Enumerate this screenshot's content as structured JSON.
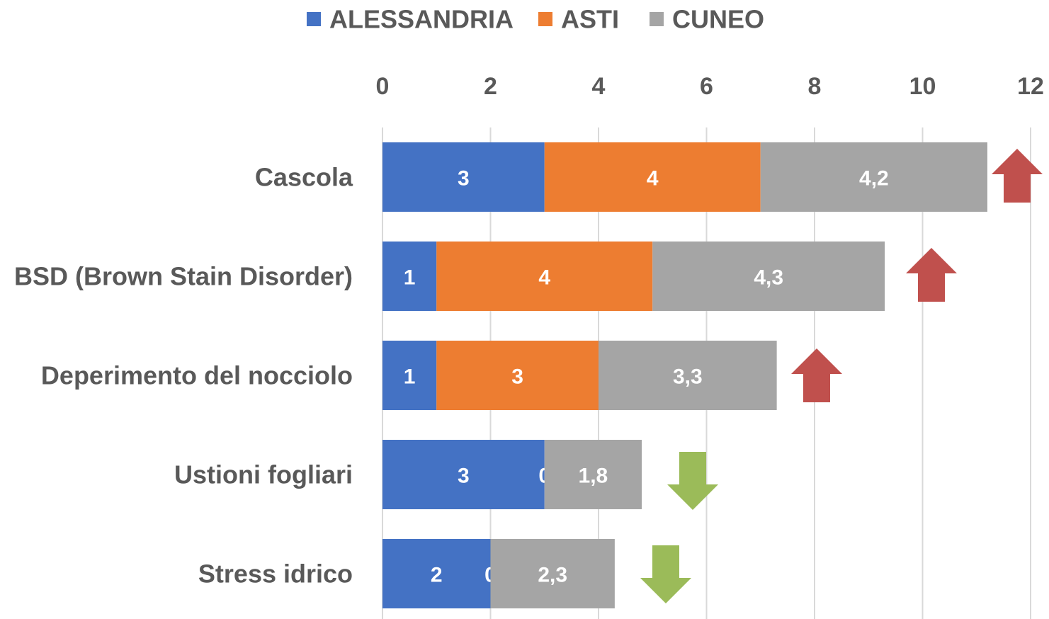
{
  "chart_data": {
    "type": "stacked_barh",
    "categories": [
      "Cascola",
      "BSD (Brown Stain Disorder)",
      "Deperimento del nocciolo",
      "Ustioni fogliari",
      "Stress idrico"
    ],
    "series": [
      {
        "name": "ALESSANDRIA",
        "color": "#4472c4",
        "values": [
          3,
          1,
          1,
          3,
          2
        ]
      },
      {
        "name": "ASTI",
        "color": "#ed7d31",
        "values": [
          4,
          4,
          3,
          0,
          0
        ]
      },
      {
        "name": "CUNEO",
        "color": "#a5a5a5",
        "values": [
          4.2,
          4.3,
          3.3,
          1.8,
          2.3
        ],
        "value_labels": [
          "4,2",
          "4,3",
          "3,3",
          "1,8",
          "2,3"
        ]
      }
    ],
    "xlim": [
      0,
      12
    ],
    "xticks": [
      0,
      2,
      4,
      6,
      8,
      10,
      12
    ],
    "grid": true,
    "legend": "top"
  }
}
